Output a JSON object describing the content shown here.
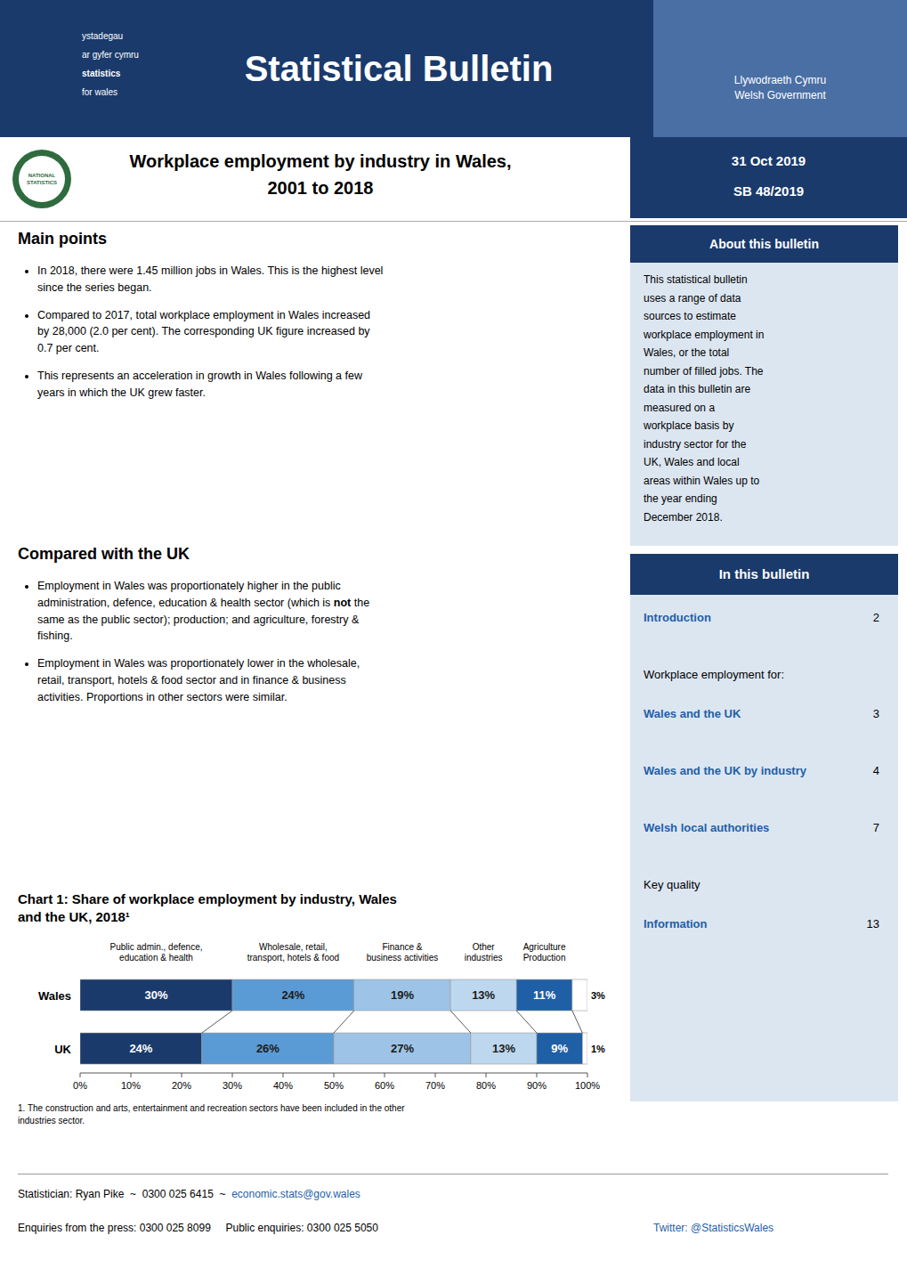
{
  "page": {
    "bg_color": "#ffffff",
    "text_color": "#000000",
    "header_bg": "#1a3a6b",
    "header_panel": "#4a6fa5",
    "sidebar_bg": "#dce6f1",
    "link_color": "#1f5fa6",
    "logo_color": "#2e6b3e",
    "header_text": "Statistical Bulletin",
    "government": "Llywodraeth Cymru\nWelsh Government",
    "stats_logo_lines": [
      "ystadegau",
      "ar gyfer cymru",
      "statistics",
      "for wales"
    ],
    "national_statistics": "NATIONAL\nSTATISTICS",
    "title": "Workplace employment by industry in Wales,\n2001 to 2018",
    "date": "31 Oct 2019",
    "bulletin_id": "SB 48/2019",
    "about_title": "About this bulletin",
    "about_lines": [
      "This statistical bulletin",
      "uses a range of data",
      "sources to estimate",
      "workplace employment in",
      "Wales, or the total",
      "number of filled jobs. The",
      "data in this bulletin are",
      "measured on a",
      "workplace basis by",
      "industry sector for the",
      "UK, Wales and local",
      "areas within Wales up to",
      "the year ending",
      "December 2018."
    ],
    "main_points_title": "Main points",
    "main_points": [
      "In 2018, there were 1.45 million jobs in Wales. This is the highest level\nsince the series began.",
      "Compared to 2017, total workplace employment in Wales increased\nby 28,000 (2.0 per cent). The corresponding UK figure increased by\n0.7 per cent.",
      "This represents an acceleration in growth in Wales following a few\nyears in which the UK grew faster."
    ],
    "compared_title": "Compared with the UK",
    "compared_points": [
      [
        "Employment in Wales was proportionately higher in the public\nadministration, defence, education & health sector (which is ",
        "not",
        " the\nsame as the public sector); production; and agriculture, forestry &\nfishing."
      ],
      [
        "Employment in Wales was proportionately lower in the wholesale,\nretail, transport, hotels & food sector and in finance & business\nactivities. Proportions in other sectors were similar."
      ]
    ],
    "in_bulletin_title": "In this bulletin",
    "in_bulletin_items": [
      [
        "Introduction",
        "2"
      ],
      [
        "Workplace employment for:",
        null
      ],
      [
        "Wales and the UK",
        "3"
      ],
      [
        "Wales and the UK by industry",
        "4"
      ],
      [
        "Welsh local authorities",
        "7"
      ],
      [
        "Key quality",
        null
      ],
      [
        "Information",
        "13"
      ]
    ],
    "chart_footnote": "1. The construction and arts, entertainment and recreation sectors have been included in the other\nindustries sector.",
    "footer": {
      "statistician": "Statistician: Ryan Pike  ~  0300 025 6415  ~  ",
      "email": "economic.stats@gov.wales",
      "enquiries": "Enquiries from the press: 0300 025 8099     Public enquiries: 0300 025 5050",
      "twitter": "Twitter: @StatisticsWales"
    }
  },
  "chart_data": {
    "type": "bar",
    "orientation": "horizontal",
    "stacked": true,
    "data_labels": true,
    "grid": false,
    "title": "Chart 1: Share of workplace employment by industry, Wales\nand the UK, 2018¹",
    "categories": [
      "Wales",
      "UK"
    ],
    "xlim": [
      0,
      100
    ],
    "xticks": [
      {
        "value": 0,
        "label": "0%"
      },
      {
        "value": 10,
        "label": "10%"
      },
      {
        "value": 20,
        "label": "20%"
      },
      {
        "value": 30,
        "label": "30%"
      },
      {
        "value": 40,
        "label": "40%"
      },
      {
        "value": 50,
        "label": "50%"
      },
      {
        "value": 60,
        "label": "60%"
      },
      {
        "value": 70,
        "label": "70%"
      },
      {
        "value": 80,
        "label": "80%"
      },
      {
        "value": 90,
        "label": "90%"
      },
      {
        "value": 100,
        "label": "100%"
      }
    ],
    "series": [
      {
        "name": "Public admin., defence,\neducation & health",
        "color": "#1a3a6b",
        "values": [
          30,
          24
        ],
        "value_labels": [
          "30%",
          "24%"
        ]
      },
      {
        "name": "Wholesale, retail,\ntransport,  hotels & food",
        "color": "#5b9bd5",
        "values": [
          24,
          26
        ],
        "value_labels": [
          "24%",
          "26%"
        ]
      },
      {
        "name": "Finance &\nbusiness activities",
        "color": "#9dc3e6",
        "values": [
          19,
          27
        ],
        "value_labels": [
          "19%",
          "27%"
        ]
      },
      {
        "name": "Other\nindustries",
        "color": "#bdd7ee",
        "values": [
          13,
          13
        ],
        "value_labels": [
          "13%",
          "13%"
        ]
      },
      {
        "name": "Agriculture\nProduction",
        "color": "#1f5fa6",
        "values": [
          11,
          9
        ],
        "value_labels": [
          "11%",
          "9%"
        ]
      },
      {
        "name": null,
        "color": "#ffffff",
        "values": [
          3,
          1
        ],
        "value_labels": [
          "3%",
          "1%"
        ]
      }
    ]
  }
}
